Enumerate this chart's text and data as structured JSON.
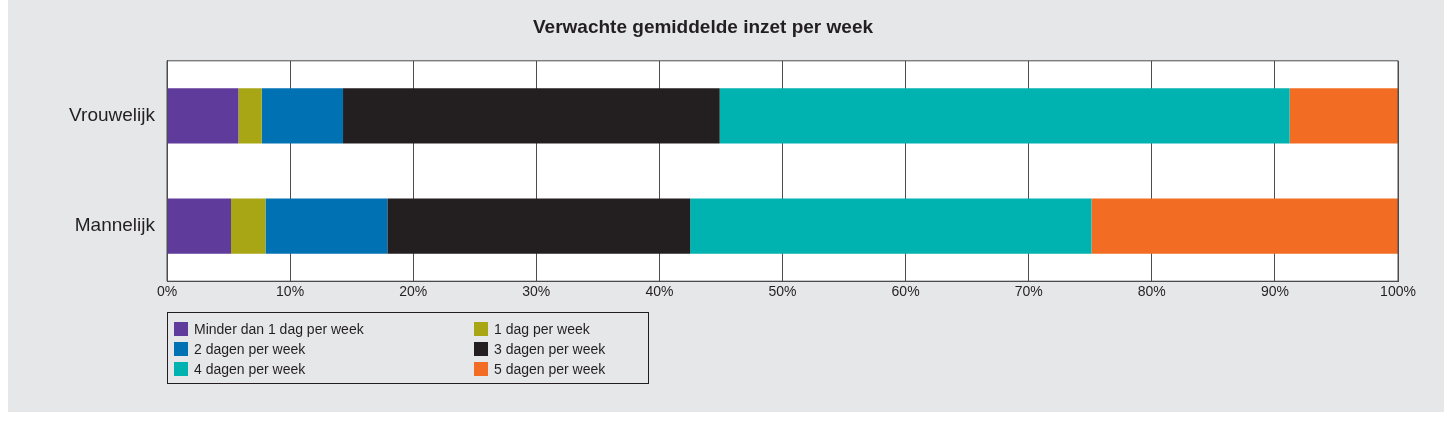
{
  "chart_data": {
    "type": "bar",
    "orientation": "horizontal",
    "stacked": true,
    "title": "Verwachte gemiddelde inzet per week",
    "categories": [
      "Vrouwelijk",
      "Mannelijk"
    ],
    "series": [
      {
        "name": "Minder dan 1 dag per week",
        "color": "#5f3b9b",
        "values": [
          5.8,
          5.2
        ]
      },
      {
        "name": "1 dag per week",
        "color": "#a8a615",
        "values": [
          1.9,
          2.8
        ]
      },
      {
        "name": "2 dagen per week",
        "color": "#0071b3",
        "values": [
          6.6,
          9.9
        ]
      },
      {
        "name": "3 dagen per week",
        "color": "#231f20",
        "values": [
          30.6,
          24.6
        ]
      },
      {
        "name": "4 dagen per week",
        "color": "#00b2b0",
        "values": [
          46.3,
          32.6
        ]
      },
      {
        "name": "5 dagen per week",
        "color": "#f26d23",
        "values": [
          8.8,
          24.9
        ]
      }
    ],
    "xlim": [
      0,
      100
    ],
    "xticks": [
      {
        "value": 0,
        "label": "0%"
      },
      {
        "value": 10,
        "label": "10%"
      },
      {
        "value": 20,
        "label": "20%"
      },
      {
        "value": 30,
        "label": "30%"
      },
      {
        "value": 40,
        "label": "40%"
      },
      {
        "value": 50,
        "label": "50%"
      },
      {
        "value": 60,
        "label": "60%"
      },
      {
        "value": 70,
        "label": "70%"
      },
      {
        "value": 80,
        "label": "80%"
      },
      {
        "value": 90,
        "label": "90%"
      },
      {
        "value": 100,
        "label": "100%"
      }
    ],
    "grid": "x",
    "legend": "bottom left"
  }
}
